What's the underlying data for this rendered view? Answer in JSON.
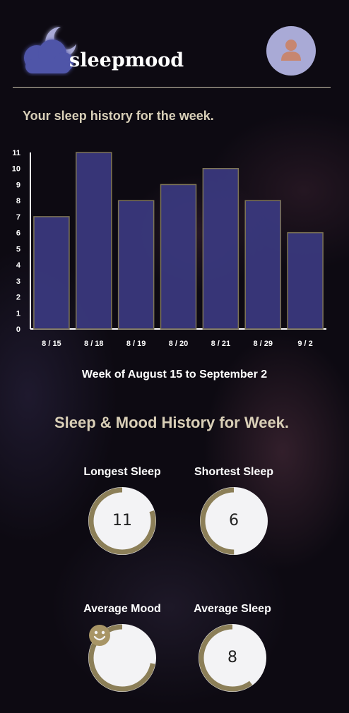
{
  "header": {
    "app_name": "sleepmood",
    "brand_color": "#5a5fae",
    "avatar_bg": "#a9aad6",
    "avatar_icon": "user-icon"
  },
  "intro": {
    "subtitle": "Your sleep history for the week."
  },
  "chart_data": {
    "type": "bar",
    "categories": [
      "8 / 15",
      "8 / 18",
      "8 / 19",
      "8 / 20",
      "8 / 21",
      "8 / 29",
      "9 / 2"
    ],
    "values": [
      7,
      11,
      8,
      9,
      10,
      8,
      6
    ],
    "ylim": [
      0,
      11
    ],
    "yticks": [
      0,
      1,
      2,
      3,
      4,
      5,
      6,
      7,
      8,
      9,
      10,
      11
    ],
    "title": "",
    "xlabel": "Week of August 15 to September 2",
    "ylabel": "",
    "bar_color": "#3b3a80",
    "bar_edge_color": "#7e7556",
    "grid": false
  },
  "stats_section": {
    "title": "Sleep & Mood History for Week.",
    "ring_color": "#8c7f58",
    "items": [
      {
        "label": "Longest Sleep",
        "value": "11",
        "fraction": 0.8
      },
      {
        "label": "Shortest Sleep",
        "value": "6",
        "fraction": 0.5
      },
      {
        "label": "Average Mood",
        "value": "",
        "icon": "smiley-icon",
        "fraction": 0.72
      },
      {
        "label": "Average Sleep",
        "value": "8",
        "fraction": 0.6
      }
    ]
  }
}
